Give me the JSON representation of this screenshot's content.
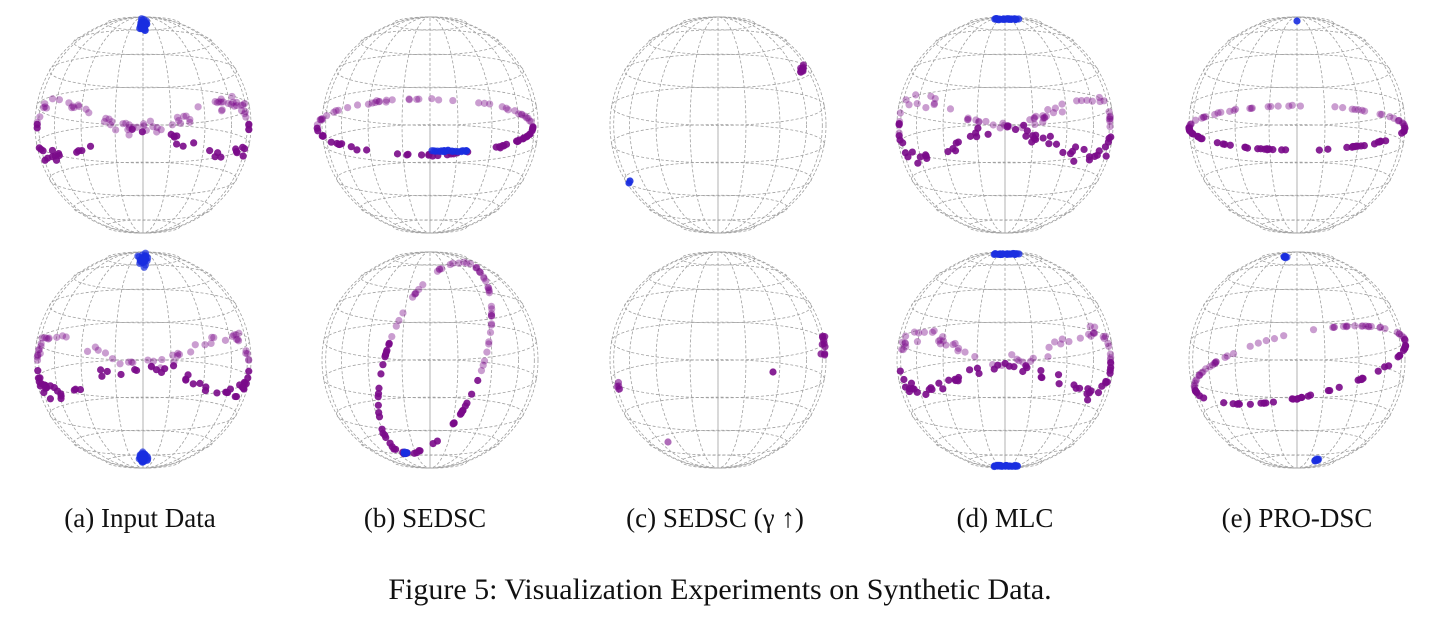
{
  "figure": {
    "caption": "Figure 5: Visualization Experiments on Synthetic Data.",
    "panels": [
      {
        "label": "(a) Input Data"
      },
      {
        "label": "(b) SEDSC"
      },
      {
        "label": "(c) SEDSC (γ ↑)"
      },
      {
        "label": "(d) MLC"
      },
      {
        "label": "(e) PRO-DSC"
      }
    ],
    "colors": {
      "purple": "#7a0a8a",
      "blue": "#1a2ee0",
      "grid": "#a0a0a0"
    }
  }
}
